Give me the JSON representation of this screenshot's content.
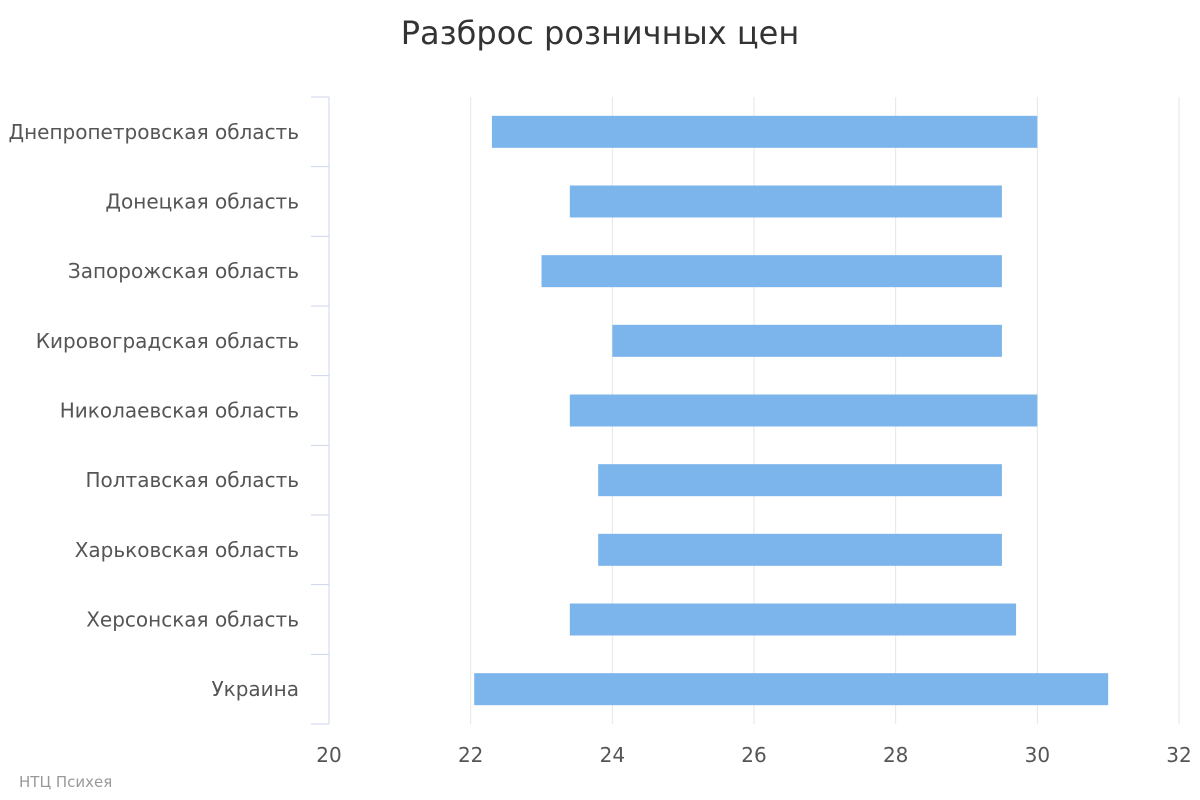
{
  "chart_data": {
    "type": "bar",
    "orientation": "horizontal",
    "subtype": "range",
    "title": "Разброс розничных цен",
    "categories": [
      "Днепропетровская область",
      "Донецкая область",
      "Запорожская область",
      "Кировоградская область",
      "Николаевская область",
      "Полтавская область",
      "Харьковская область",
      "Херсонская область",
      "Украина"
    ],
    "series": [
      {
        "low": [
          22.3,
          23.4,
          23.0,
          24.0,
          23.4,
          23.8,
          23.8,
          23.4,
          22.05
        ],
        "high": [
          30.0,
          29.5,
          29.5,
          29.5,
          30.0,
          29.5,
          29.5,
          29.7,
          31.0
        ]
      }
    ],
    "xlim": [
      20,
      32
    ],
    "xticks": [
      "20",
      "22",
      "24",
      "26",
      "28",
      "30",
      "32"
    ],
    "grid": true,
    "legend": "none"
  },
  "colors": {
    "bar": "#7cb5ec",
    "grid": "#e6e6e6",
    "axis": "#ccd6eb"
  },
  "credits": "НТЦ Психея"
}
